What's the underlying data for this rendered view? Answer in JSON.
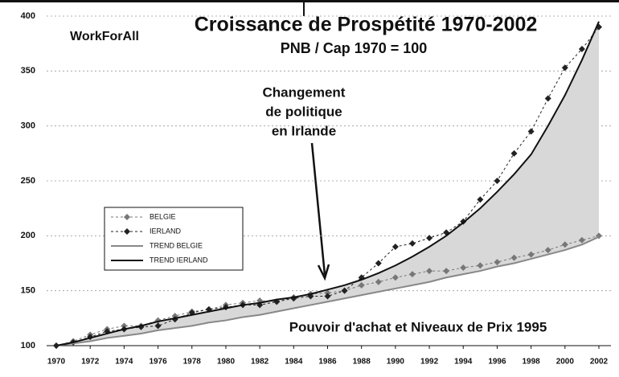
{
  "chart_data": {
    "type": "line",
    "title": "Croissance de Prospétité 1970-2002",
    "subtitle": "PNB / Cap 1970 = 100",
    "logo": "WorkForAll",
    "annotation": [
      "Changement",
      "de politique",
      "en Irlande"
    ],
    "footer": "Pouvoir d'achat et Niveaux de Prix 1995",
    "x": [
      1970,
      1971,
      1972,
      1973,
      1974,
      1975,
      1976,
      1977,
      1978,
      1979,
      1980,
      1981,
      1982,
      1983,
      1984,
      1985,
      1986,
      1987,
      1988,
      1989,
      1990,
      1991,
      1992,
      1993,
      1994,
      1995,
      1996,
      1997,
      1998,
      1999,
      2000,
      2001,
      2002
    ],
    "series": [
      {
        "name": "BELGIE",
        "color": "#777777",
        "style": "points",
        "values": [
          100,
          104,
          110,
          115,
          118,
          118,
          123,
          127,
          131,
          133,
          137,
          139,
          141,
          140,
          144,
          147,
          148,
          150,
          155,
          158,
          162,
          165,
          168,
          168,
          171,
          173,
          176,
          180,
          183,
          187,
          192,
          196,
          200
        ]
      },
      {
        "name": "IERLAND",
        "color": "#222222",
        "style": "points",
        "values": [
          100,
          103,
          108,
          113,
          115,
          117,
          118,
          124,
          130,
          133,
          135,
          137,
          137,
          140,
          143,
          145,
          145,
          150,
          162,
          175,
          190,
          193,
          198,
          203,
          213,
          233,
          250,
          275,
          295,
          325,
          353,
          370,
          390
        ]
      },
      {
        "name": "TREND BELGIE",
        "color": "#888888",
        "style": "line",
        "values": [
          100,
          102,
          104,
          107,
          109,
          111,
          114,
          116,
          118,
          121,
          123,
          126,
          128,
          131,
          134,
          137,
          140,
          143,
          146,
          149,
          152,
          155,
          158,
          162,
          165,
          168,
          172,
          175,
          179,
          183,
          187,
          192,
          199
        ]
      },
      {
        "name": "TREND IERLAND",
        "color": "#111111",
        "style": "line",
        "values": [
          100,
          103,
          107,
          111,
          115,
          118,
          122,
          125,
          128,
          131,
          134,
          137,
          139,
          142,
          144,
          147,
          151,
          155,
          160,
          166,
          173,
          181,
          190,
          200,
          212,
          225,
          240,
          256,
          274,
          300,
          328,
          360,
          395
        ]
      }
    ],
    "xlim": [
      1970,
      2002
    ],
    "xticks": [
      1970,
      1972,
      1974,
      1976,
      1978,
      1980,
      1982,
      1984,
      1986,
      1988,
      1990,
      1992,
      1994,
      1996,
      1998,
      2000,
      2002
    ],
    "ylim": [
      100,
      400
    ],
    "yticks": [
      100,
      150,
      200,
      250,
      300,
      350,
      400
    ],
    "grid": true,
    "shade": "#d8d8d8"
  }
}
